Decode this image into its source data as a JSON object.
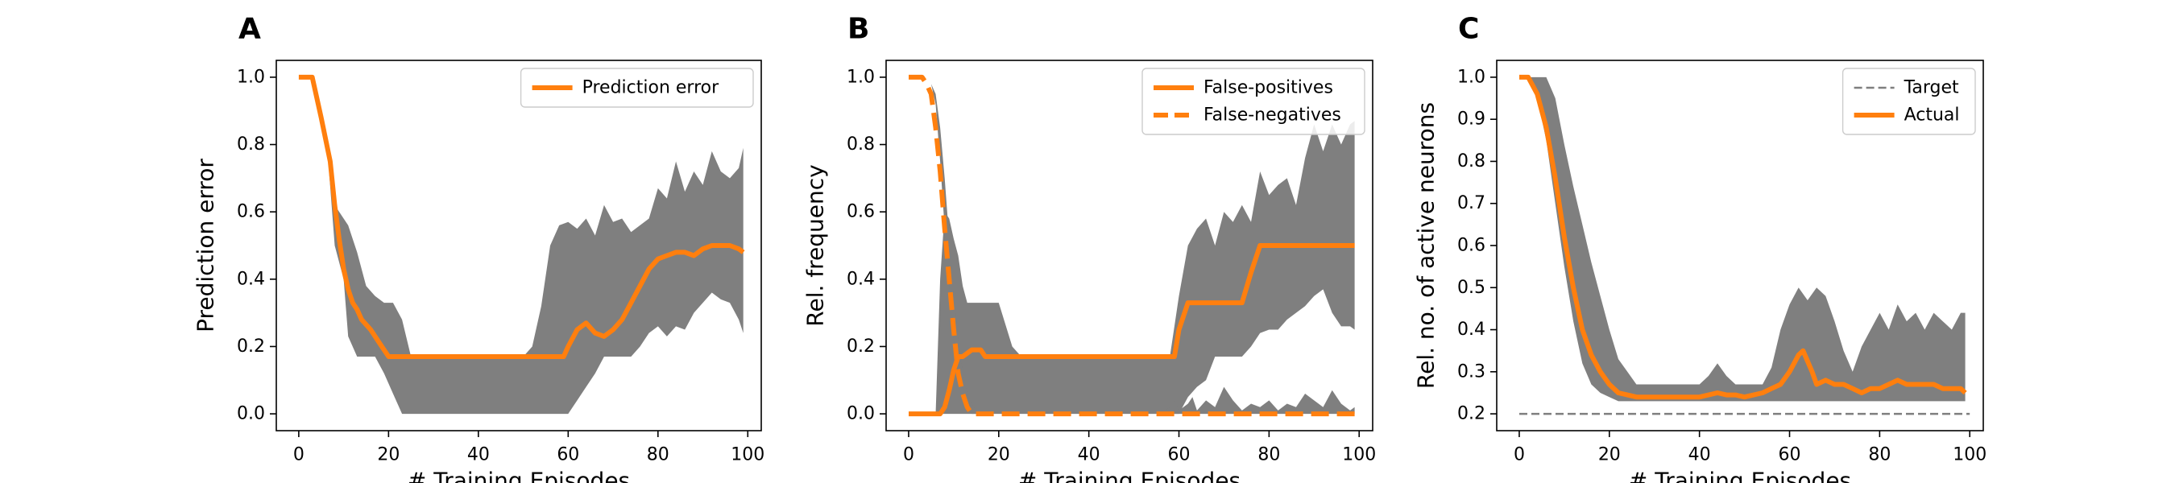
{
  "colors": {
    "accent": "#ff7f0e",
    "band": "#7f7f7f",
    "target": "#7f7f7f",
    "legend_edge": "#cccccc"
  },
  "chart_data": [
    {
      "panel": "A",
      "type": "line",
      "title": "",
      "xlabel": "# Training Episodes",
      "ylabel": "Prediction error",
      "xlim": [
        -5,
        103
      ],
      "ylim": [
        -0.05,
        1.05
      ],
      "xticks": [
        0,
        20,
        40,
        60,
        80,
        100
      ],
      "yticks": [
        0.0,
        0.2,
        0.4,
        0.6,
        0.8,
        1.0
      ],
      "ytick_labels": [
        "0.0",
        "0.2",
        "0.4",
        "0.6",
        "0.8",
        "1.0"
      ],
      "legend": "top-right",
      "grid": false,
      "bands": [
        {
          "x": [
            0,
            3,
            6,
            8,
            10,
            11,
            13,
            15,
            17,
            19,
            21,
            23,
            25,
            30,
            40,
            50,
            52,
            54,
            56,
            58,
            60,
            62,
            64,
            66,
            68,
            70,
            72,
            74,
            76,
            78,
            80,
            82,
            84,
            86,
            88,
            90,
            92,
            94,
            96,
            98,
            99
          ],
          "upper": [
            1.0,
            1.0,
            0.85,
            0.62,
            0.58,
            0.56,
            0.48,
            0.38,
            0.35,
            0.33,
            0.33,
            0.28,
            0.17,
            0.17,
            0.17,
            0.17,
            0.2,
            0.32,
            0.5,
            0.56,
            0.57,
            0.55,
            0.58,
            0.53,
            0.62,
            0.57,
            0.58,
            0.54,
            0.56,
            0.58,
            0.67,
            0.64,
            0.75,
            0.66,
            0.72,
            0.68,
            0.78,
            0.72,
            0.7,
            0.73,
            0.79
          ],
          "lower": [
            1.0,
            1.0,
            0.85,
            0.5,
            0.4,
            0.23,
            0.17,
            0.17,
            0.17,
            0.12,
            0.06,
            0.0,
            0.0,
            0.0,
            0.0,
            0.0,
            0.0,
            0.0,
            0.0,
            0.0,
            0.0,
            0.04,
            0.08,
            0.12,
            0.17,
            0.17,
            0.17,
            0.17,
            0.2,
            0.24,
            0.26,
            0.23,
            0.26,
            0.25,
            0.3,
            0.33,
            0.36,
            0.34,
            0.33,
            0.28,
            0.24
          ]
        }
      ],
      "series": [
        {
          "name": "Prediction error",
          "style": "solid",
          "x": [
            0,
            3,
            5,
            7,
            8,
            9,
            10,
            11,
            12,
            13,
            14,
            16,
            18,
            20,
            30,
            40,
            50,
            59,
            60,
            62,
            64,
            66,
            68,
            70,
            72,
            74,
            76,
            78,
            80,
            82,
            84,
            86,
            88,
            90,
            92,
            94,
            96,
            98,
            99
          ],
          "y": [
            1.0,
            1.0,
            0.88,
            0.75,
            0.62,
            0.52,
            0.43,
            0.37,
            0.33,
            0.31,
            0.28,
            0.25,
            0.21,
            0.17,
            0.17,
            0.17,
            0.17,
            0.17,
            0.2,
            0.25,
            0.27,
            0.24,
            0.23,
            0.25,
            0.28,
            0.33,
            0.38,
            0.43,
            0.46,
            0.47,
            0.48,
            0.48,
            0.47,
            0.49,
            0.5,
            0.5,
            0.5,
            0.49,
            0.48
          ]
        }
      ]
    },
    {
      "panel": "B",
      "type": "line",
      "title": "",
      "xlabel": "# Training Episodes",
      "ylabel": "Rel. frequency",
      "xlim": [
        -5,
        103
      ],
      "ylim": [
        -0.05,
        1.05
      ],
      "xticks": [
        0,
        20,
        40,
        60,
        80,
        100
      ],
      "yticks": [
        0.0,
        0.2,
        0.4,
        0.6,
        0.8,
        1.0
      ],
      "ytick_labels": [
        "0.0",
        "0.2",
        "0.4",
        "0.6",
        "0.8",
        "1.0"
      ],
      "legend": "top-right",
      "grid": false,
      "bands": [
        {
          "x": [
            0,
            6,
            7,
            8,
            9,
            10,
            11,
            12,
            13,
            14,
            15,
            16,
            18,
            20,
            23,
            25,
            27,
            30,
            40,
            50,
            58,
            60,
            62,
            64,
            66,
            68,
            70,
            72,
            74,
            76,
            78,
            80,
            82,
            84,
            86,
            88,
            90,
            92,
            94,
            96,
            98,
            99
          ],
          "upper": [
            0.0,
            0.0,
            0.4,
            0.6,
            0.58,
            0.52,
            0.47,
            0.38,
            0.33,
            0.33,
            0.33,
            0.33,
            0.33,
            0.33,
            0.2,
            0.17,
            0.17,
            0.17,
            0.17,
            0.17,
            0.17,
            0.35,
            0.5,
            0.55,
            0.58,
            0.5,
            0.6,
            0.57,
            0.62,
            0.57,
            0.72,
            0.65,
            0.68,
            0.7,
            0.62,
            0.76,
            0.86,
            0.78,
            0.86,
            0.8,
            0.86,
            0.87
          ],
          "lower": [
            0.0,
            0.0,
            0.0,
            0.0,
            0.0,
            0.0,
            0.0,
            0.0,
            0.0,
            0.0,
            0.0,
            0.0,
            0.0,
            0.0,
            0.0,
            0.0,
            0.0,
            0.0,
            0.0,
            0.0,
            0.0,
            0.0,
            0.05,
            0.08,
            0.1,
            0.17,
            0.17,
            0.17,
            0.17,
            0.2,
            0.24,
            0.25,
            0.25,
            0.28,
            0.3,
            0.32,
            0.35,
            0.37,
            0.3,
            0.26,
            0.26,
            0.25
          ]
        },
        {
          "x": [
            0,
            4,
            5,
            6,
            7,
            8,
            9,
            10,
            11,
            12,
            13,
            14,
            15,
            16,
            17
          ],
          "upper": [
            1.0,
            1.0,
            0.98,
            0.95,
            0.85,
            0.7,
            0.52,
            0.35,
            0.22,
            0.13,
            0.06,
            0.03,
            0.01,
            0.0,
            0.0
          ],
          "lower": [
            1.0,
            1.0,
            0.98,
            0.92,
            0.75,
            0.55,
            0.38,
            0.22,
            0.12,
            0.05,
            0.02,
            0.0,
            0.0,
            0.0,
            0.0
          ]
        },
        {
          "x": [
            56,
            58,
            59,
            60,
            61,
            62,
            63,
            64,
            66,
            68,
            70,
            72,
            74,
            76,
            78,
            80,
            82,
            84,
            86,
            88,
            90,
            92,
            94,
            96,
            98,
            99
          ],
          "upper": [
            0.0,
            0.02,
            0.04,
            0.01,
            0.02,
            0.03,
            0.05,
            0.01,
            0.04,
            0.02,
            0.08,
            0.04,
            0.01,
            0.03,
            0.02,
            0.04,
            0.01,
            0.03,
            0.02,
            0.06,
            0.04,
            0.02,
            0.07,
            0.03,
            0.01,
            0.02
          ],
          "lower": [
            0.0,
            0.0,
            0.0,
            0.0,
            0.0,
            0.0,
            0.0,
            0.0,
            0.0,
            0.0,
            0.0,
            0.0,
            0.0,
            0.0,
            0.0,
            0.0,
            0.0,
            0.0,
            0.0,
            0.0,
            0.0,
            0.0,
            0.0,
            0.0,
            0.0,
            0.0
          ]
        }
      ],
      "series": [
        {
          "name": "False-positives",
          "style": "solid",
          "x": [
            0,
            7,
            8,
            9,
            10,
            11,
            12,
            13,
            14,
            15,
            16,
            17,
            18,
            30,
            40,
            50,
            59,
            60,
            62,
            70,
            74,
            76,
            78,
            80,
            90,
            99
          ],
          "y": [
            0.0,
            0.0,
            0.02,
            0.07,
            0.13,
            0.17,
            0.17,
            0.18,
            0.19,
            0.19,
            0.19,
            0.17,
            0.17,
            0.17,
            0.17,
            0.17,
            0.17,
            0.25,
            0.33,
            0.33,
            0.33,
            0.42,
            0.5,
            0.5,
            0.5,
            0.5
          ]
        },
        {
          "name": "False-negatives",
          "style": "dashed",
          "x": [
            0,
            3,
            4,
            5,
            6,
            7,
            8,
            9,
            10,
            11,
            12,
            13,
            14,
            15,
            20,
            40,
            60,
            80,
            99
          ],
          "y": [
            1.0,
            1.0,
            0.98,
            0.95,
            0.85,
            0.72,
            0.55,
            0.4,
            0.25,
            0.12,
            0.06,
            0.02,
            0.0,
            0.0,
            0.0,
            0.0,
            0.0,
            0.0,
            0.0
          ]
        }
      ]
    },
    {
      "panel": "C",
      "type": "line",
      "title": "",
      "xlabel": "# Training Episodes",
      "ylabel": "Rel. no. of active neurons",
      "xlim": [
        -5,
        103
      ],
      "ylim": [
        0.16,
        1.04
      ],
      "xticks": [
        0,
        20,
        40,
        60,
        80,
        100
      ],
      "yticks": [
        0.2,
        0.3,
        0.4,
        0.5,
        0.6,
        0.7,
        0.8,
        0.9,
        1.0
      ],
      "ytick_labels": [
        "0.2",
        "0.3",
        "0.4",
        "0.5",
        "0.6",
        "0.7",
        "0.8",
        "0.9",
        "1.0"
      ],
      "legend": "top-right",
      "grid": false,
      "bands": [
        {
          "x": [
            0,
            2,
            4,
            6,
            8,
            10,
            12,
            14,
            16,
            18,
            20,
            22,
            24,
            26,
            30,
            35,
            40,
            42,
            44,
            46,
            48,
            50,
            52,
            54,
            56,
            58,
            60,
            62,
            64,
            66,
            68,
            70,
            72,
            74,
            76,
            78,
            80,
            82,
            84,
            86,
            88,
            90,
            92,
            94,
            96,
            98,
            99
          ],
          "upper": [
            1.0,
            1.0,
            1.0,
            1.0,
            0.95,
            0.84,
            0.74,
            0.65,
            0.56,
            0.48,
            0.4,
            0.33,
            0.3,
            0.27,
            0.27,
            0.27,
            0.27,
            0.29,
            0.32,
            0.29,
            0.27,
            0.27,
            0.27,
            0.27,
            0.31,
            0.4,
            0.46,
            0.5,
            0.47,
            0.5,
            0.48,
            0.42,
            0.35,
            0.3,
            0.36,
            0.4,
            0.44,
            0.4,
            0.46,
            0.42,
            0.44,
            0.4,
            0.44,
            0.42,
            0.4,
            0.44,
            0.44
          ],
          "lower": [
            1.0,
            1.0,
            0.95,
            0.85,
            0.7,
            0.55,
            0.42,
            0.32,
            0.27,
            0.25,
            0.24,
            0.23,
            0.23,
            0.23,
            0.23,
            0.23,
            0.23,
            0.23,
            0.23,
            0.23,
            0.23,
            0.23,
            0.23,
            0.23,
            0.23,
            0.23,
            0.23,
            0.23,
            0.23,
            0.23,
            0.23,
            0.23,
            0.23,
            0.23,
            0.23,
            0.23,
            0.23,
            0.23,
            0.23,
            0.23,
            0.23,
            0.23,
            0.23,
            0.23,
            0.23,
            0.23,
            0.23
          ]
        }
      ],
      "series": [
        {
          "name": "Target",
          "style": "dashed-thin",
          "x": [
            0,
            100
          ],
          "y": [
            0.2,
            0.2
          ]
        },
        {
          "name": "Actual",
          "style": "solid",
          "x": [
            0,
            2,
            4,
            6,
            8,
            10,
            12,
            14,
            16,
            18,
            20,
            22,
            24,
            26,
            30,
            40,
            44,
            46,
            48,
            50,
            54,
            56,
            58,
            60,
            62,
            63,
            65,
            66,
            68,
            70,
            72,
            74,
            76,
            78,
            80,
            82,
            84,
            86,
            88,
            90,
            92,
            94,
            96,
            98,
            99
          ],
          "y": [
            1.0,
            1.0,
            0.96,
            0.88,
            0.76,
            0.62,
            0.5,
            0.4,
            0.34,
            0.3,
            0.27,
            0.25,
            0.245,
            0.24,
            0.24,
            0.24,
            0.25,
            0.245,
            0.245,
            0.24,
            0.25,
            0.26,
            0.27,
            0.3,
            0.34,
            0.35,
            0.3,
            0.27,
            0.28,
            0.27,
            0.27,
            0.26,
            0.25,
            0.26,
            0.26,
            0.27,
            0.28,
            0.27,
            0.27,
            0.27,
            0.27,
            0.26,
            0.26,
            0.26,
            0.25
          ]
        }
      ]
    }
  ]
}
